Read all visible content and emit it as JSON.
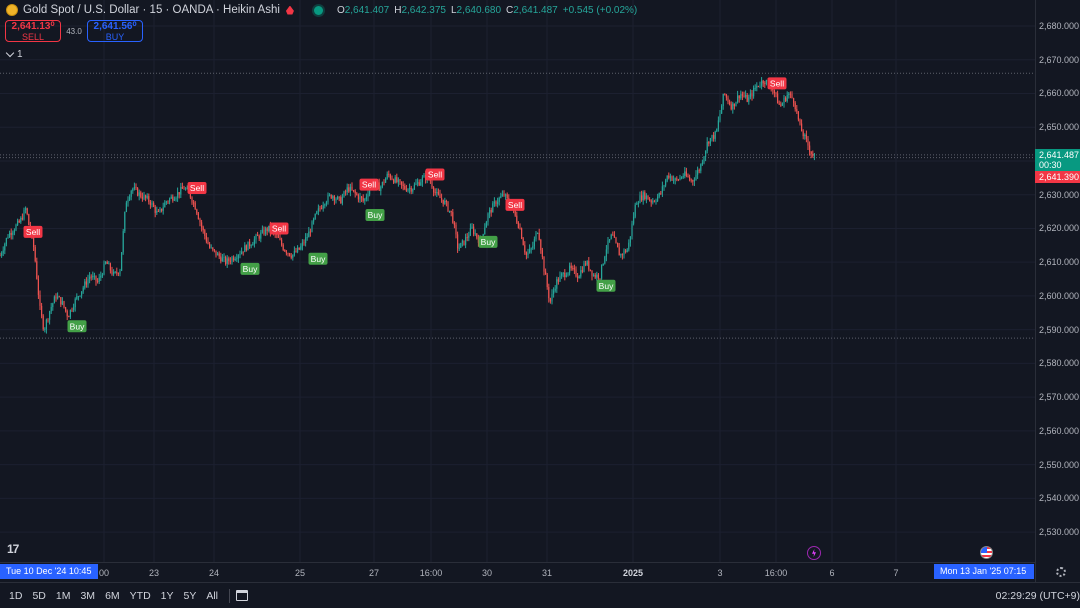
{
  "header": {
    "symbol_title": "Gold Spot / U.S. Dollar · 15 · OANDA · Heikin Ashi",
    "ohlc": [
      {
        "label": "O",
        "value": "2,641.407"
      },
      {
        "label": "H",
        "value": "2,642.375"
      },
      {
        "label": "L",
        "value": "2,640.680"
      },
      {
        "label": "C",
        "value": "2,641.487"
      },
      {
        "label": "",
        "value": "+0.545 (+0.02%)"
      }
    ]
  },
  "trade": {
    "sell_price": "2,641.13⁰",
    "sell_label": "SELL",
    "spread": "43.0",
    "buy_price": "2,641.56⁰",
    "buy_label": "BUY"
  },
  "collapse_label": "1",
  "price_axis": {
    "ticks": [
      "2,680.000",
      "2,670.000",
      "2,660.000",
      "2,650.000",
      "2,640.000",
      "2,630.000",
      "2,620.000",
      "2,610.000",
      "2,600.000",
      "2,590.000",
      "2,580.000",
      "2,570.000",
      "2,560.000",
      "2,550.000",
      "2,540.000",
      "2,530.000"
    ],
    "last_price": "2,641.487",
    "countdown": "00:30",
    "bid_price": "2,641.390"
  },
  "time_axis": {
    "ticks": [
      "00",
      "23",
      "24",
      "25",
      "27",
      "16:00",
      "30",
      "31",
      "2025",
      "3",
      "16:00",
      "6",
      "7"
    ],
    "cursor_left": "Tue 10 Dec '24   10:45",
    "cursor_right": "Mon 13 Jan '25   07:15"
  },
  "bottom_bar": {
    "ranges": [
      "1D",
      "5D",
      "1M",
      "3M",
      "6M",
      "YTD",
      "1Y",
      "5Y",
      "All"
    ],
    "clock": "02:29:29 (UTC+9)"
  },
  "logo_text": "17",
  "colors": {
    "up": "#26a69a",
    "down": "#ef5350",
    "background": "#131722",
    "accent": "#2962ff"
  },
  "chart_data": {
    "type": "candlestick",
    "ylim": [
      2525,
      2685
    ],
    "path": [
      [
        0,
        2612
      ],
      [
        8,
        2618
      ],
      [
        20,
        2622
      ],
      [
        26,
        2626
      ],
      [
        30,
        2619
      ],
      [
        34,
        2614
      ],
      [
        40,
        2596
      ],
      [
        44,
        2590
      ],
      [
        50,
        2596
      ],
      [
        56,
        2600
      ],
      [
        62,
        2598
      ],
      [
        68,
        2594
      ],
      [
        74,
        2598
      ],
      [
        82,
        2602
      ],
      [
        90,
        2606
      ],
      [
        98,
        2604
      ],
      [
        106,
        2610
      ],
      [
        114,
        2606
      ],
      [
        120,
        2608
      ],
      [
        126,
        2628
      ],
      [
        132,
        2632
      ],
      [
        140,
        2630
      ],
      [
        150,
        2628
      ],
      [
        158,
        2624
      ],
      [
        166,
        2628
      ],
      [
        176,
        2630
      ],
      [
        184,
        2632
      ],
      [
        190,
        2630
      ],
      [
        196,
        2626
      ],
      [
        202,
        2620
      ],
      [
        210,
        2614
      ],
      [
        218,
        2612
      ],
      [
        226,
        2610
      ],
      [
        236,
        2612
      ],
      [
        244,
        2614
      ],
      [
        252,
        2616
      ],
      [
        260,
        2618
      ],
      [
        268,
        2620
      ],
      [
        276,
        2618
      ],
      [
        284,
        2614
      ],
      [
        292,
        2612
      ],
      [
        300,
        2614
      ],
      [
        308,
        2618
      ],
      [
        316,
        2624
      ],
      [
        324,
        2628
      ],
      [
        332,
        2630
      ],
      [
        340,
        2628
      ],
      [
        348,
        2632
      ],
      [
        356,
        2630
      ],
      [
        364,
        2628
      ],
      [
        372,
        2634
      ],
      [
        380,
        2632
      ],
      [
        388,
        2636
      ],
      [
        396,
        2634
      ],
      [
        404,
        2632
      ],
      [
        412,
        2632
      ],
      [
        420,
        2634
      ],
      [
        428,
        2636
      ],
      [
        436,
        2630
      ],
      [
        444,
        2628
      ],
      [
        452,
        2624
      ],
      [
        458,
        2614
      ],
      [
        464,
        2616
      ],
      [
        472,
        2620
      ],
      [
        480,
        2616
      ],
      [
        488,
        2624
      ],
      [
        496,
        2628
      ],
      [
        504,
        2630
      ],
      [
        512,
        2626
      ],
      [
        520,
        2620
      ],
      [
        526,
        2612
      ],
      [
        532,
        2614
      ],
      [
        538,
        2620
      ],
      [
        544,
        2608
      ],
      [
        550,
        2598
      ],
      [
        556,
        2604
      ],
      [
        562,
        2606
      ],
      [
        570,
        2608
      ],
      [
        578,
        2606
      ],
      [
        586,
        2610
      ],
      [
        594,
        2606
      ],
      [
        600,
        2606
      ],
      [
        606,
        2614
      ],
      [
        612,
        2618
      ],
      [
        620,
        2612
      ],
      [
        628,
        2614
      ],
      [
        636,
        2628
      ],
      [
        644,
        2630
      ],
      [
        652,
        2628
      ],
      [
        660,
        2630
      ],
      [
        668,
        2636
      ],
      [
        676,
        2634
      ],
      [
        684,
        2636
      ],
      [
        692,
        2634
      ],
      [
        700,
        2638
      ],
      [
        708,
        2646
      ],
      [
        716,
        2648
      ],
      [
        724,
        2660
      ],
      [
        732,
        2656
      ],
      [
        740,
        2660
      ],
      [
        748,
        2658
      ],
      [
        756,
        2662
      ],
      [
        764,
        2664
      ],
      [
        772,
        2662
      ],
      [
        780,
        2656
      ],
      [
        788,
        2660
      ],
      [
        794,
        2658
      ],
      [
        800,
        2650
      ],
      [
        806,
        2646
      ],
      [
        812,
        2642
      ],
      [
        815,
        2641.4
      ]
    ],
    "signals": [
      {
        "label": "Sell",
        "x": 33,
        "price": 2619
      },
      {
        "label": "Buy",
        "x": 77,
        "price": 2591
      },
      {
        "label": "Sell",
        "x": 197,
        "price": 2632
      },
      {
        "label": "Buy",
        "x": 250,
        "price": 2608
      },
      {
        "label": "Sell",
        "x": 279,
        "price": 2620
      },
      {
        "label": "Buy",
        "x": 318,
        "price": 2611
      },
      {
        "label": "Sell",
        "x": 369,
        "price": 2633
      },
      {
        "label": "Buy",
        "x": 375,
        "price": 2624
      },
      {
        "label": "Sell",
        "x": 435,
        "price": 2636
      },
      {
        "label": "Buy",
        "x": 488,
        "price": 2616
      },
      {
        "label": "Sell",
        "x": 515,
        "price": 2627
      },
      {
        "label": "Buy",
        "x": 606,
        "price": 2603
      },
      {
        "label": "Sell",
        "x": 777,
        "price": 2663
      }
    ],
    "hlines": [
      2666,
      2641.8,
      2641,
      2587.5
    ]
  }
}
